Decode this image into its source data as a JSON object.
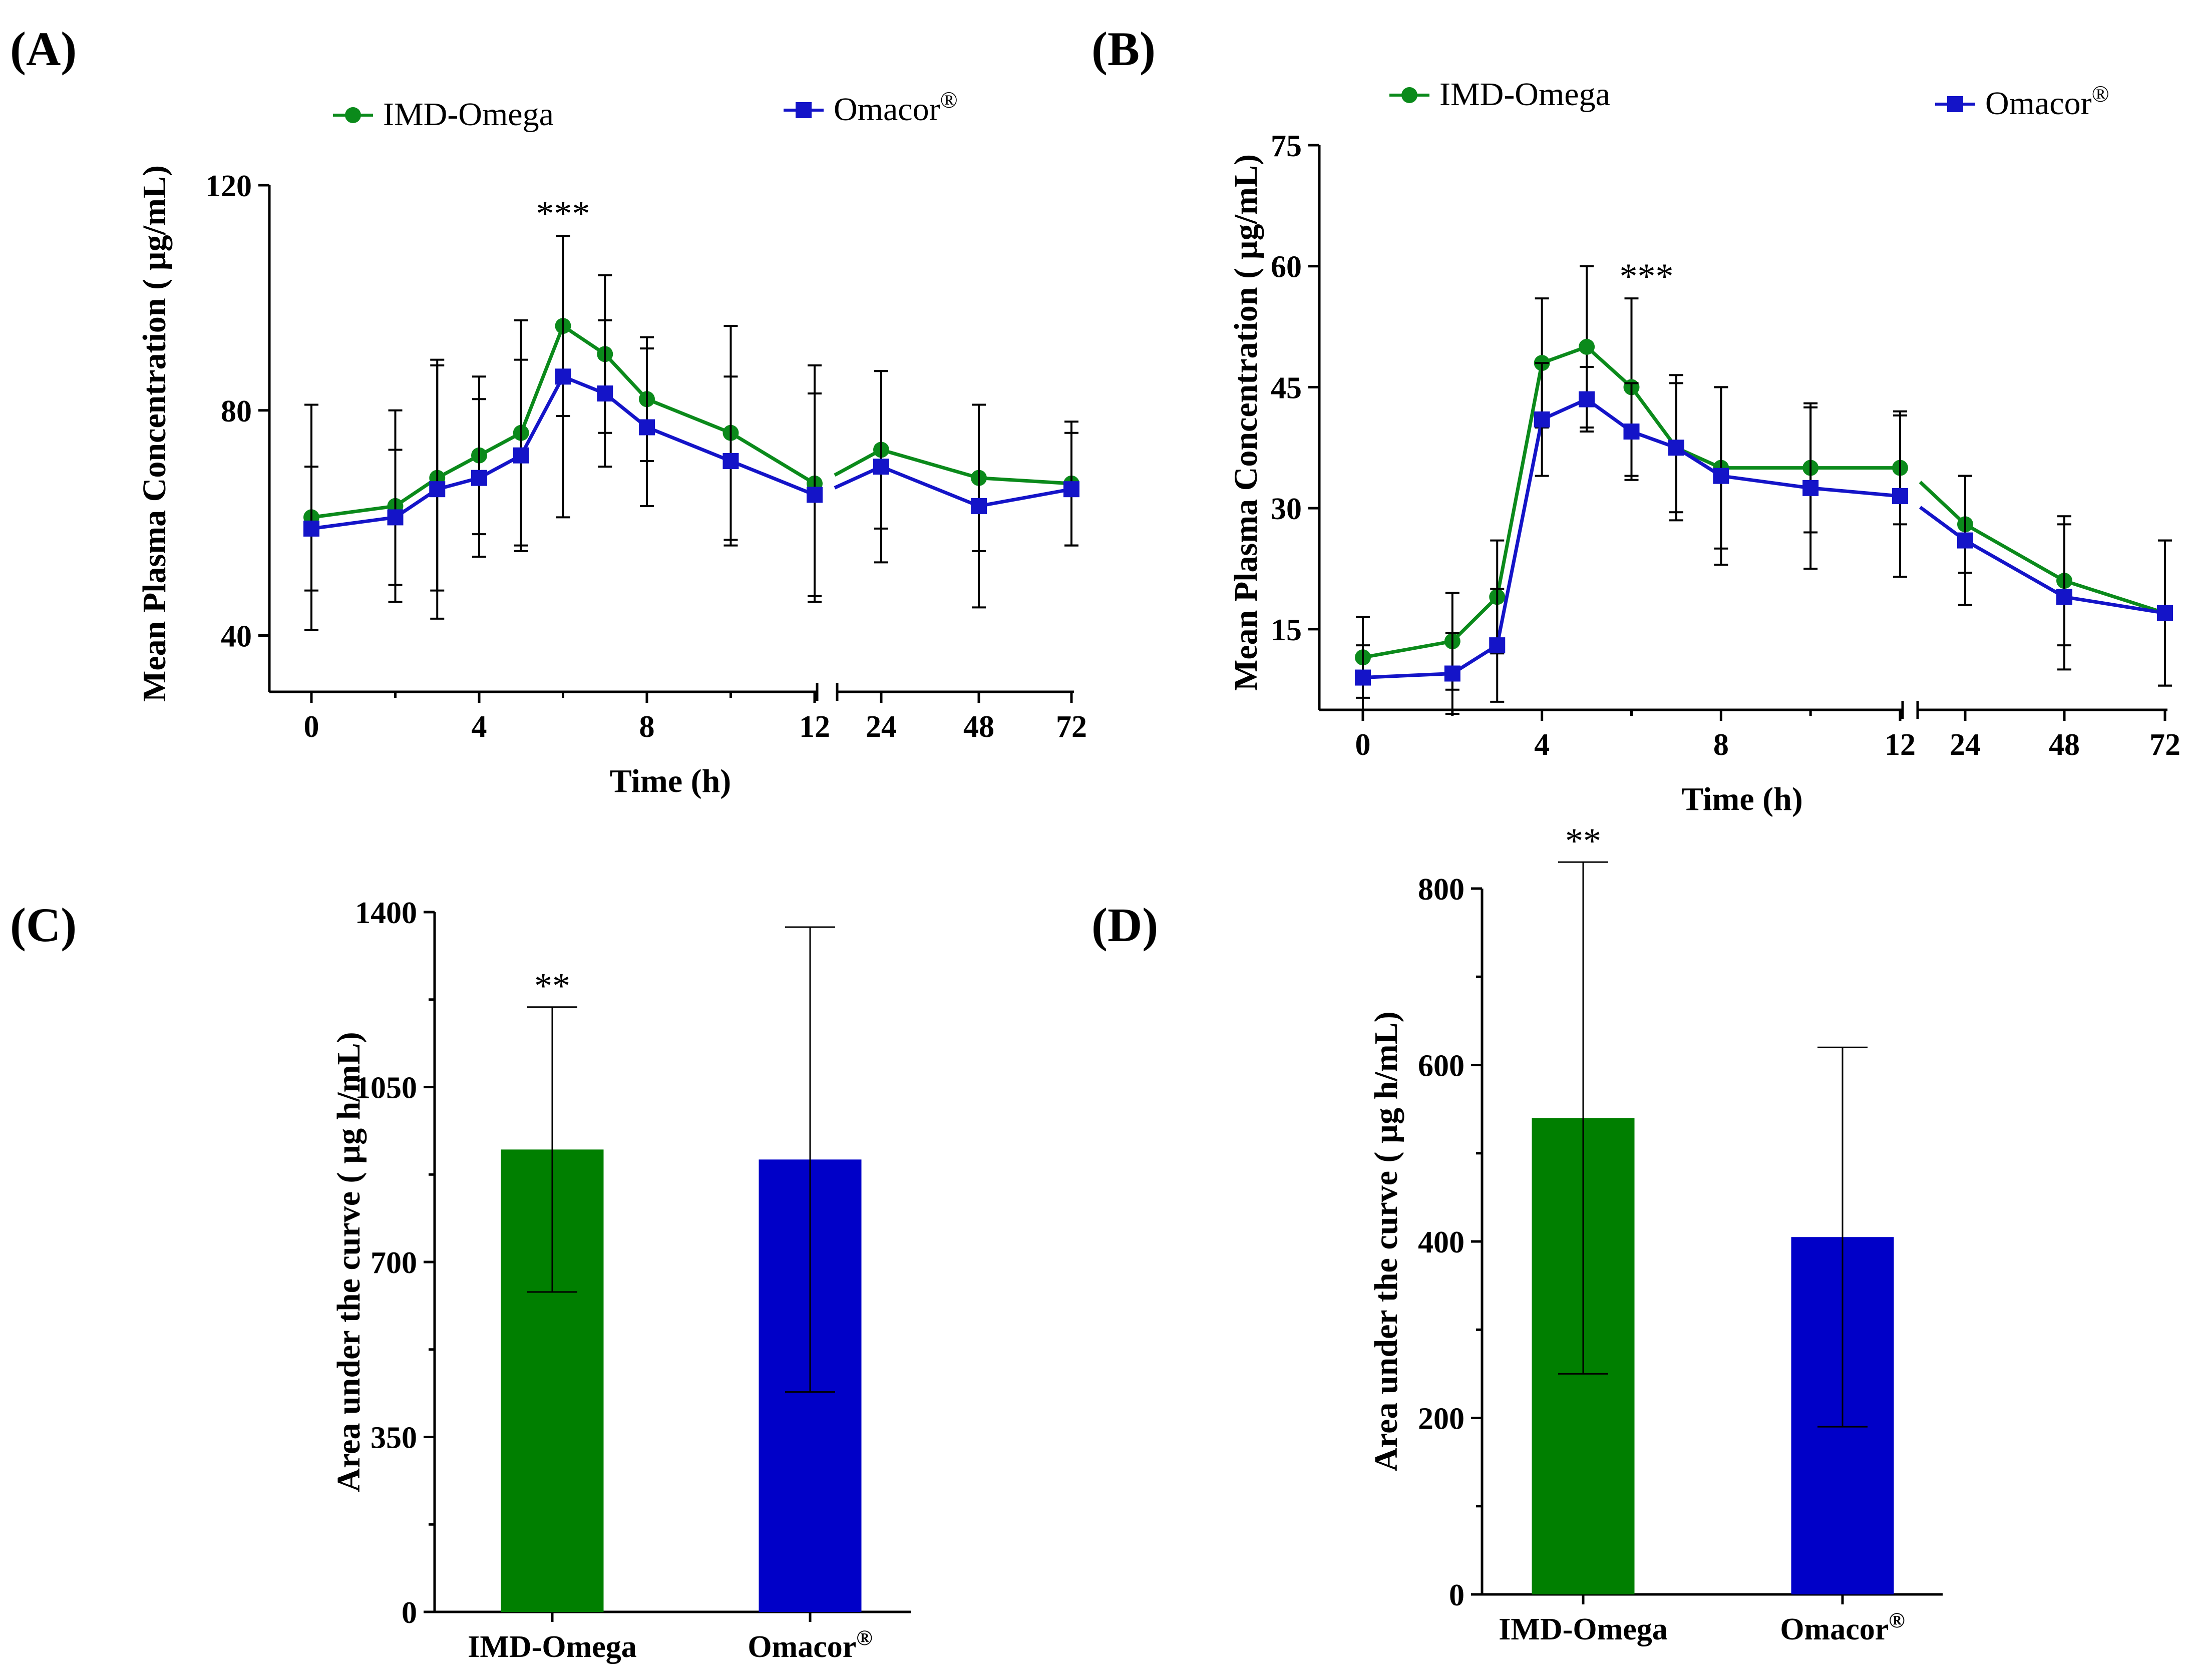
{
  "colors": {
    "green": "#0b8a1b",
    "blue": "#1414c8",
    "bar_green": "#007f00",
    "bar_blue": "#0000c8"
  },
  "chart_data": [
    {
      "panel": "(A)",
      "type": "line",
      "xlabel": "Time (h)",
      "ylabel": "Mean Plasma Concentration ( µg/mL)",
      "ylim": [
        30,
        120
      ],
      "yticks": [
        "40",
        "80",
        "120"
      ],
      "ytick_values": [
        40,
        80,
        120
      ],
      "x_segment1_ticks": [
        "0",
        "4",
        "8",
        "12"
      ],
      "x_segment2_ticks": [
        "24",
        "48",
        "72"
      ],
      "x": [
        0,
        2,
        3,
        4,
        5,
        6,
        7,
        8,
        10,
        12,
        24,
        48,
        72
      ],
      "legend": [
        "IMD-Omega",
        "Omacor®"
      ],
      "series": [
        {
          "name": "IMD-Omega",
          "marker": "circle",
          "values": [
            61,
            63,
            68,
            72,
            76,
            95,
            90,
            82,
            76,
            67,
            73,
            68,
            67
          ],
          "err": [
            20,
            17,
            20,
            14,
            20,
            16,
            14,
            11,
            19,
            21,
            14,
            13,
            11
          ]
        },
        {
          "name": "Omacor®",
          "marker": "square",
          "values": [
            59,
            61,
            66,
            68,
            72,
            86,
            83,
            77,
            71,
            65,
            70,
            63,
            66
          ],
          "err": [
            11,
            12,
            23,
            14,
            17,
            25,
            13,
            14,
            15,
            18,
            17,
            18,
            10
          ]
        }
      ],
      "annotations": [
        {
          "text": "***",
          "x": 6
        }
      ]
    },
    {
      "panel": "(B)",
      "type": "line",
      "xlabel": "Time (h)",
      "ylabel": "Mean Plasma Concentration ( µg/mL)",
      "ylim": [
        5,
        75
      ],
      "yticks": [
        "15",
        "30",
        "45",
        "60",
        "75"
      ],
      "ytick_values": [
        15,
        30,
        45,
        60,
        75
      ],
      "x_segment1_ticks": [
        "0",
        "4",
        "8",
        "12"
      ],
      "x_segment2_ticks": [
        "24",
        "48",
        "72"
      ],
      "x": [
        0,
        2,
        3,
        4,
        5,
        6,
        7,
        8,
        10,
        12,
        24,
        48,
        72
      ],
      "legend": [
        "IMD-Omega",
        "Omacor®"
      ],
      "series": [
        {
          "name": "IMD-Omega",
          "marker": "circle",
          "values": [
            11.5,
            13.5,
            19,
            48,
            50,
            45,
            37.5,
            35,
            35,
            35,
            28,
            21,
            17
          ],
          "err": [
            5,
            6,
            7,
            8,
            10,
            11,
            9,
            10,
            8,
            7,
            6,
            8,
            9
          ]
        },
        {
          "name": "Omacor®",
          "marker": "square",
          "values": [
            9,
            9.5,
            13,
            41,
            43.5,
            39.5,
            37.5,
            34,
            32.5,
            31.5,
            26,
            19,
            17
          ],
          "err": [
            4,
            5,
            7,
            7,
            4,
            6,
            8,
            11,
            10,
            10,
            8,
            9,
            9
          ]
        }
      ],
      "annotations": [
        {
          "text": "***",
          "x": 6
        }
      ]
    },
    {
      "panel": "(C)",
      "type": "bar",
      "ylabel": "Area under the curve ( µg h/mL)",
      "ylim": [
        0,
        1400
      ],
      "yticks": [
        "0",
        "350",
        "700",
        "1050",
        "1400"
      ],
      "ytick_values": [
        0,
        350,
        700,
        1050,
        1400
      ],
      "categories": [
        "IMD-Omega",
        "Omacor®"
      ],
      "values": [
        925,
        905
      ],
      "err": [
        285,
        465
      ],
      "annotations": [
        {
          "text": "**",
          "category": "IMD-Omega"
        }
      ]
    },
    {
      "panel": "(D)",
      "type": "bar",
      "ylabel": "Area under the curve ( µg h/mL)",
      "ylim": [
        0,
        800
      ],
      "yticks": [
        "0",
        "200",
        "400",
        "600",
        "800"
      ],
      "ytick_values": [
        0,
        200,
        400,
        600,
        800
      ],
      "categories": [
        "IMD-Omega",
        "Omacor®"
      ],
      "values": [
        540,
        405
      ],
      "err": [
        290,
        215
      ],
      "annotations": [
        {
          "text": "**",
          "category": "IMD-Omega"
        }
      ]
    }
  ]
}
